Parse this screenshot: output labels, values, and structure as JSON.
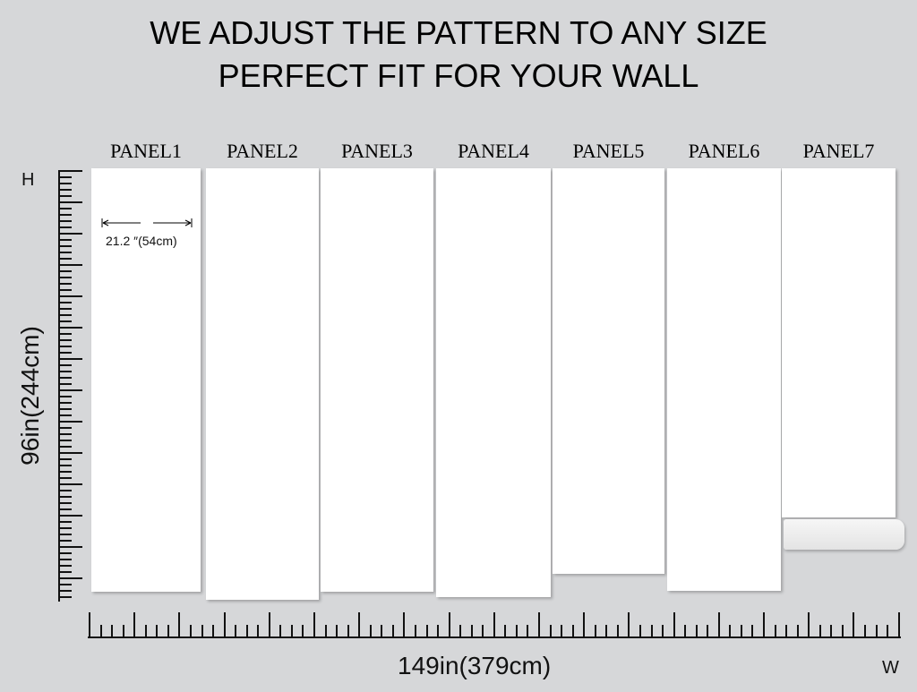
{
  "heading": {
    "line1": "WE ADJUST THE PATTERN TO ANY SIZE",
    "line2": "PERFECT FIT FOR YOUR WALL"
  },
  "panels": [
    {
      "label": "PANEL1"
    },
    {
      "label": "PANEL2"
    },
    {
      "label": "PANEL3"
    },
    {
      "label": "PANEL4"
    },
    {
      "label": "PANEL5"
    },
    {
      "label": "PANEL6"
    },
    {
      "label": "PANEL7"
    }
  ],
  "panel_width_label": "21.2  ″(54cm)",
  "height_axis": {
    "letter": "H",
    "label": "96in(244cm)"
  },
  "width_axis": {
    "letter": "W",
    "label": "149in(379cm)"
  }
}
